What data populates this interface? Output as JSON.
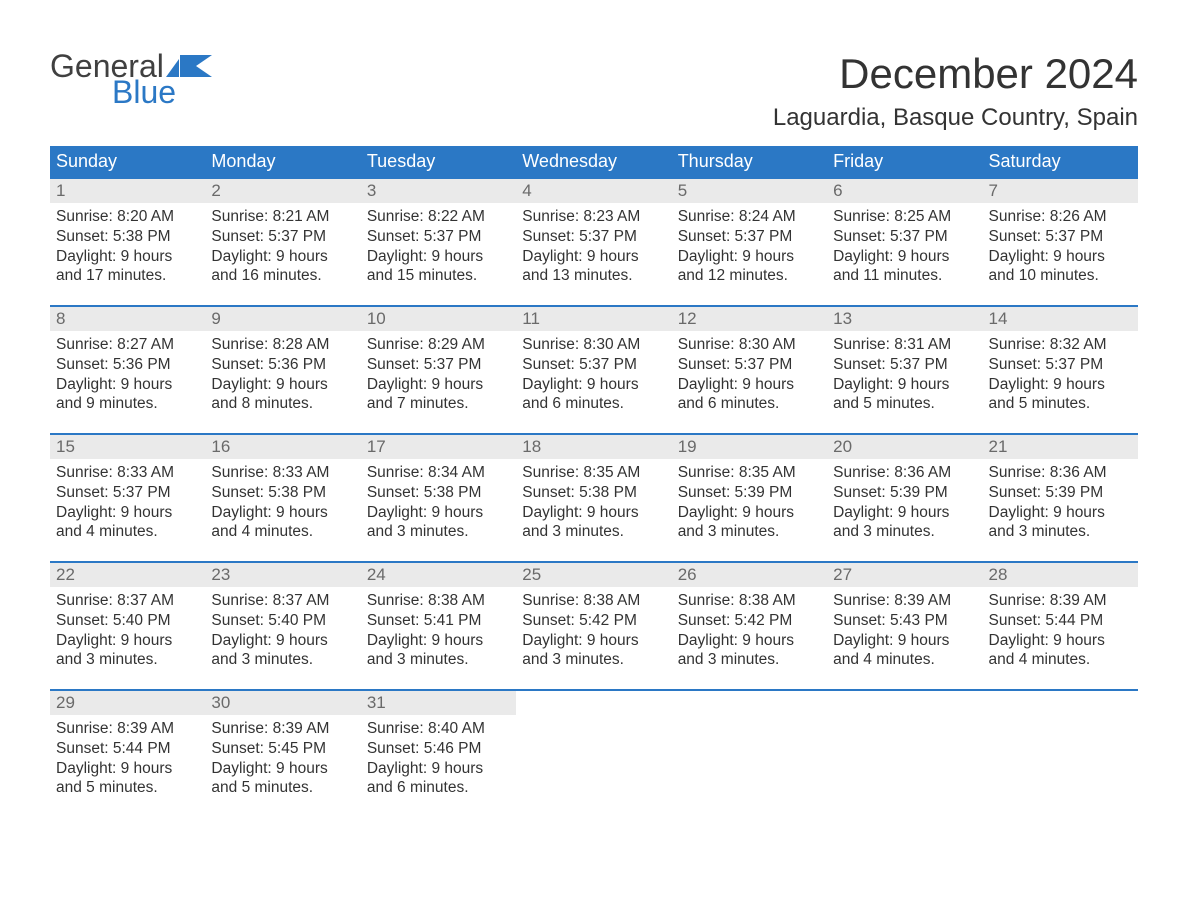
{
  "logo": {
    "text1": "General",
    "text2": "Blue"
  },
  "title": "December 2024",
  "location": "Laguardia, Basque Country, Spain",
  "colors": {
    "header_bg": "#2b78c5",
    "header_text": "#ffffff",
    "daynum_bg": "#eaeaea",
    "daynum_text": "#6a6a6a",
    "row_border": "#2b78c5",
    "body_text": "#333333",
    "logo_gray": "#404040",
    "logo_blue": "#2b78c5"
  },
  "typography": {
    "title_fontsize": 42,
    "location_fontsize": 24,
    "header_fontsize": 18,
    "daynum_fontsize": 17,
    "body_fontsize": 15.5
  },
  "day_headers": [
    "Sunday",
    "Monday",
    "Tuesday",
    "Wednesday",
    "Thursday",
    "Friday",
    "Saturday"
  ],
  "weeks": [
    [
      {
        "n": "1",
        "sr": "8:20 AM",
        "ss": "5:38 PM",
        "dl": "9 hours and 17 minutes."
      },
      {
        "n": "2",
        "sr": "8:21 AM",
        "ss": "5:37 PM",
        "dl": "9 hours and 16 minutes."
      },
      {
        "n": "3",
        "sr": "8:22 AM",
        "ss": "5:37 PM",
        "dl": "9 hours and 15 minutes."
      },
      {
        "n": "4",
        "sr": "8:23 AM",
        "ss": "5:37 PM",
        "dl": "9 hours and 13 minutes."
      },
      {
        "n": "5",
        "sr": "8:24 AM",
        "ss": "5:37 PM",
        "dl": "9 hours and 12 minutes."
      },
      {
        "n": "6",
        "sr": "8:25 AM",
        "ss": "5:37 PM",
        "dl": "9 hours and 11 minutes."
      },
      {
        "n": "7",
        "sr": "8:26 AM",
        "ss": "5:37 PM",
        "dl": "9 hours and 10 minutes."
      }
    ],
    [
      {
        "n": "8",
        "sr": "8:27 AM",
        "ss": "5:36 PM",
        "dl": "9 hours and 9 minutes."
      },
      {
        "n": "9",
        "sr": "8:28 AM",
        "ss": "5:36 PM",
        "dl": "9 hours and 8 minutes."
      },
      {
        "n": "10",
        "sr": "8:29 AM",
        "ss": "5:37 PM",
        "dl": "9 hours and 7 minutes."
      },
      {
        "n": "11",
        "sr": "8:30 AM",
        "ss": "5:37 PM",
        "dl": "9 hours and 6 minutes."
      },
      {
        "n": "12",
        "sr": "8:30 AM",
        "ss": "5:37 PM",
        "dl": "9 hours and 6 minutes."
      },
      {
        "n": "13",
        "sr": "8:31 AM",
        "ss": "5:37 PM",
        "dl": "9 hours and 5 minutes."
      },
      {
        "n": "14",
        "sr": "8:32 AM",
        "ss": "5:37 PM",
        "dl": "9 hours and 5 minutes."
      }
    ],
    [
      {
        "n": "15",
        "sr": "8:33 AM",
        "ss": "5:37 PM",
        "dl": "9 hours and 4 minutes."
      },
      {
        "n": "16",
        "sr": "8:33 AM",
        "ss": "5:38 PM",
        "dl": "9 hours and 4 minutes."
      },
      {
        "n": "17",
        "sr": "8:34 AM",
        "ss": "5:38 PM",
        "dl": "9 hours and 3 minutes."
      },
      {
        "n": "18",
        "sr": "8:35 AM",
        "ss": "5:38 PM",
        "dl": "9 hours and 3 minutes."
      },
      {
        "n": "19",
        "sr": "8:35 AM",
        "ss": "5:39 PM",
        "dl": "9 hours and 3 minutes."
      },
      {
        "n": "20",
        "sr": "8:36 AM",
        "ss": "5:39 PM",
        "dl": "9 hours and 3 minutes."
      },
      {
        "n": "21",
        "sr": "8:36 AM",
        "ss": "5:39 PM",
        "dl": "9 hours and 3 minutes."
      }
    ],
    [
      {
        "n": "22",
        "sr": "8:37 AM",
        "ss": "5:40 PM",
        "dl": "9 hours and 3 minutes."
      },
      {
        "n": "23",
        "sr": "8:37 AM",
        "ss": "5:40 PM",
        "dl": "9 hours and 3 minutes."
      },
      {
        "n": "24",
        "sr": "8:38 AM",
        "ss": "5:41 PM",
        "dl": "9 hours and 3 minutes."
      },
      {
        "n": "25",
        "sr": "8:38 AM",
        "ss": "5:42 PM",
        "dl": "9 hours and 3 minutes."
      },
      {
        "n": "26",
        "sr": "8:38 AM",
        "ss": "5:42 PM",
        "dl": "9 hours and 3 minutes."
      },
      {
        "n": "27",
        "sr": "8:39 AM",
        "ss": "5:43 PM",
        "dl": "9 hours and 4 minutes."
      },
      {
        "n": "28",
        "sr": "8:39 AM",
        "ss": "5:44 PM",
        "dl": "9 hours and 4 minutes."
      }
    ],
    [
      {
        "n": "29",
        "sr": "8:39 AM",
        "ss": "5:44 PM",
        "dl": "9 hours and 5 minutes."
      },
      {
        "n": "30",
        "sr": "8:39 AM",
        "ss": "5:45 PM",
        "dl": "9 hours and 5 minutes."
      },
      {
        "n": "31",
        "sr": "8:40 AM",
        "ss": "5:46 PM",
        "dl": "9 hours and 6 minutes."
      },
      null,
      null,
      null,
      null
    ]
  ],
  "labels": {
    "sunrise": "Sunrise: ",
    "sunset": "Sunset: ",
    "daylight": "Daylight: "
  }
}
